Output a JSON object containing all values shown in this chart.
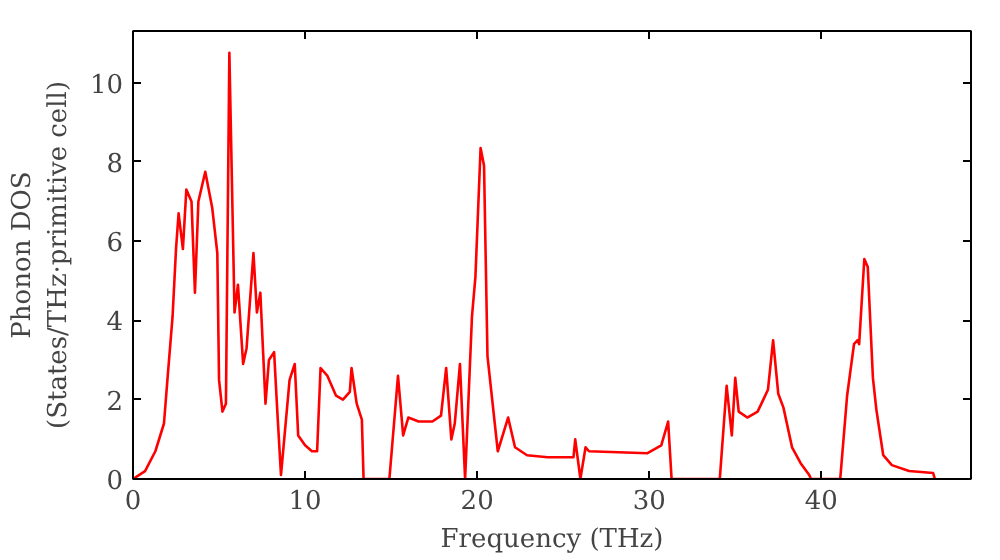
{
  "chart_data": {
    "type": "line",
    "xlabel": "Frequency (THz)",
    "ylabel": "Phonon DOS\n(States/THz·primitive cell)",
    "xlim": [
      0,
      48.7
    ],
    "ylim": [
      0,
      11.3
    ],
    "xticks": [
      0,
      10,
      20,
      30,
      40
    ],
    "yticks": [
      0,
      2,
      4,
      6,
      8,
      10
    ],
    "grid": false,
    "series": [
      {
        "color": "#ff0000",
        "x": [
          0,
          0.7,
          1.3,
          1.8,
          2.0,
          2.3,
          2.5,
          2.65,
          2.9,
          3.1,
          3.4,
          3.6,
          3.8,
          4.2,
          4.6,
          4.9,
          5.0,
          5.2,
          5.4,
          5.6,
          5.9,
          6.1,
          6.4,
          6.6,
          7.0,
          7.2,
          7.4,
          7.7,
          7.9,
          8.2,
          8.4,
          8.6,
          9.1,
          9.4,
          9.6,
          10.0,
          10.4,
          10.7,
          10.9,
          11.3,
          11.8,
          12.2,
          12.6,
          12.7,
          13.0,
          13.3,
          13.4,
          14.9,
          15.4,
          15.7,
          16.0,
          16.6,
          17.4,
          17.9,
          18.2,
          18.5,
          18.7,
          19.0,
          19.3,
          19.7,
          19.9,
          20.2,
          20.4,
          20.6,
          21.2,
          21.8,
          22.2,
          22.9,
          24.1,
          25.6,
          25.7,
          26.0,
          26.3,
          26.5,
          29.9,
          30.7,
          31.1,
          31.3,
          34.1,
          34.5,
          34.8,
          35.0,
          35.2,
          35.7,
          36.3,
          36.9,
          37.2,
          37.5,
          37.8,
          38.3,
          38.8,
          39.3,
          39.4,
          41.1,
          41.5,
          41.9,
          42.1,
          42.2,
          42.5,
          42.7,
          43.0,
          43.2,
          43.6,
          44.1,
          45.1,
          46.5,
          46.6
        ],
        "values": [
          0,
          0.2,
          0.7,
          1.4,
          2.5,
          4.1,
          5.8,
          6.7,
          5.8,
          7.3,
          7.0,
          4.7,
          7.0,
          7.75,
          6.85,
          5.7,
          2.5,
          1.7,
          1.9,
          10.75,
          4.2,
          4.9,
          2.9,
          3.3,
          5.7,
          4.2,
          4.7,
          1.9,
          3.0,
          3.2,
          1.6,
          0.1,
          2.5,
          2.9,
          1.1,
          0.85,
          0.7,
          0.7,
          2.8,
          2.6,
          2.1,
          2.0,
          2.2,
          2.8,
          1.9,
          1.5,
          0,
          0,
          2.6,
          1.1,
          1.55,
          1.45,
          1.45,
          1.6,
          2.8,
          1.0,
          1.4,
          2.9,
          0,
          4.1,
          5.1,
          8.35,
          7.9,
          3.1,
          0.7,
          1.55,
          0.8,
          0.6,
          0.55,
          0.55,
          1.0,
          0,
          0.8,
          0.7,
          0.65,
          0.85,
          1.45,
          0,
          0,
          2.35,
          1.1,
          2.55,
          1.7,
          1.55,
          1.7,
          2.25,
          3.5,
          2.15,
          1.8,
          0.8,
          0.4,
          0.1,
          0,
          0,
          2.1,
          3.4,
          3.5,
          3.4,
          5.55,
          5.35,
          2.55,
          1.75,
          0.6,
          0.35,
          0.2,
          0.15,
          0
        ]
      }
    ]
  }
}
